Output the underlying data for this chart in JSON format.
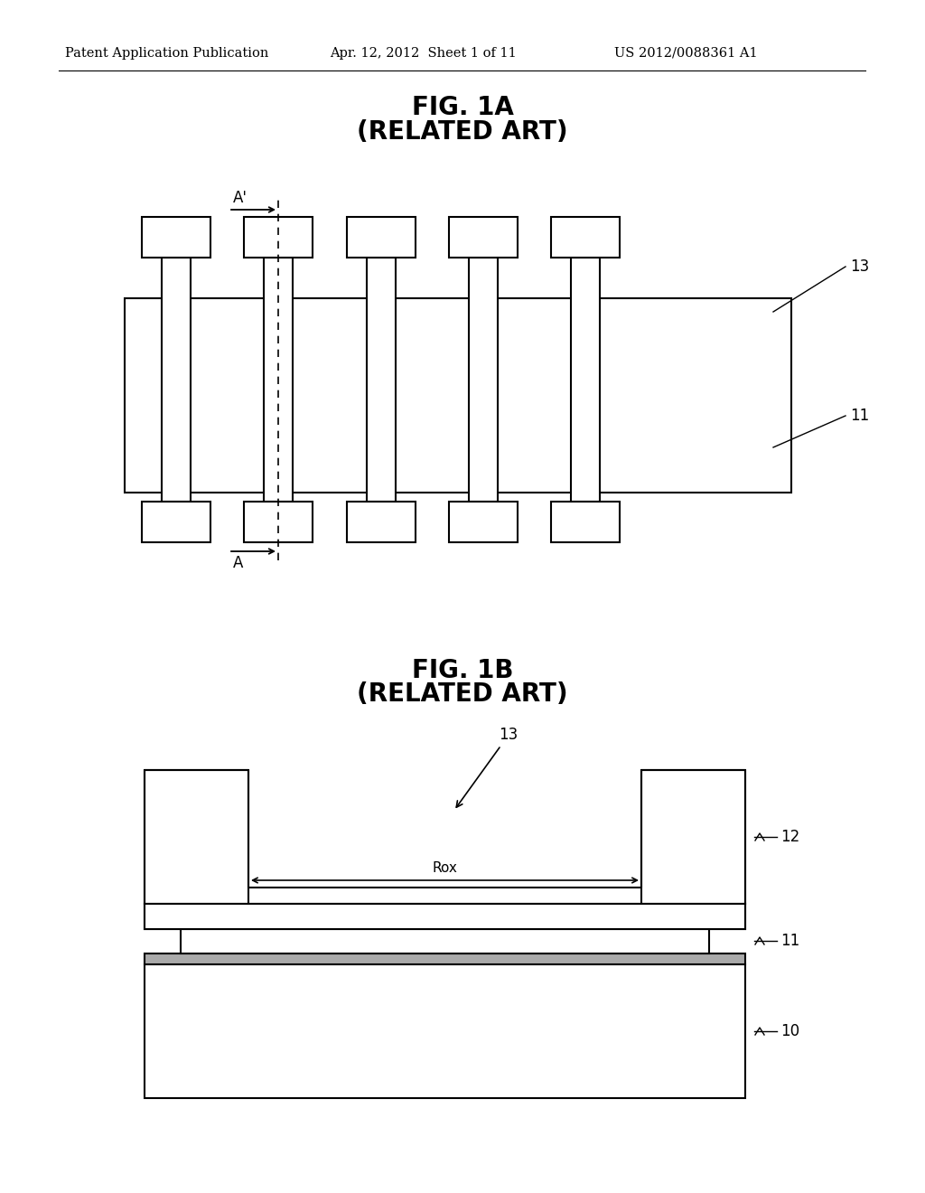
{
  "bg_color": "#ffffff",
  "header_left": "Patent Application Publication",
  "header_mid": "Apr. 12, 2012  Sheet 1 of 11",
  "header_right": "US 2012/0088361 A1",
  "fig1a_title": "FIG. 1A",
  "fig1a_subtitle": "(RELATED ART)",
  "fig1b_title": "FIG. 1B",
  "fig1b_subtitle": "(RELATED ART)",
  "line_color": "#000000",
  "lw": 1.5
}
